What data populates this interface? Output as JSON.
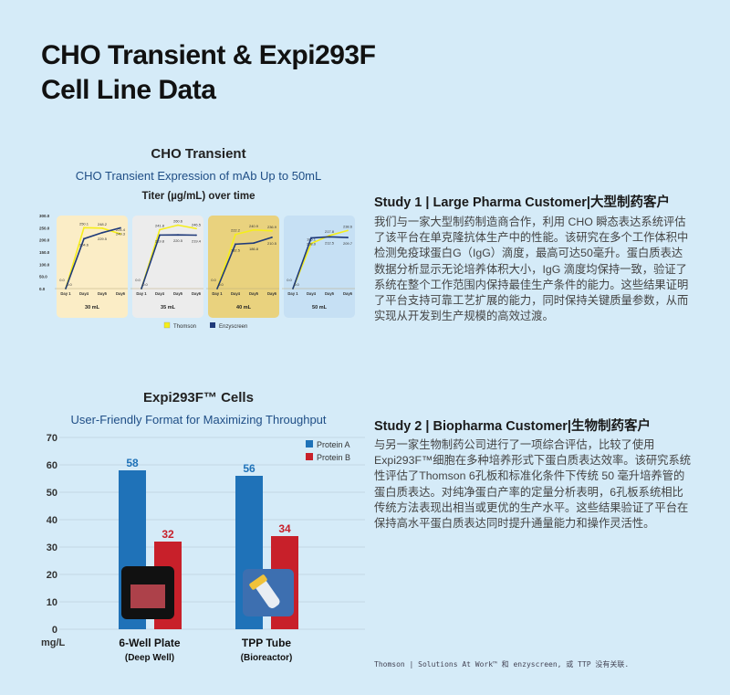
{
  "page_title": [
    "CHO Transient & Expi293F",
    "Cell Line Data"
  ],
  "cho": {
    "heading": "CHO Transient",
    "subtitle": "CHO Transient Expression of mAb Up to 50mL",
    "chart_title": "Titer (µg/mL) over time"
  },
  "expi": {
    "heading": "Expi293F™ Cells",
    "subtitle": "User-Friendly Format for Maximizing Throughput"
  },
  "study1": {
    "heading": "Study 1 | Large Pharma Customer|大型制药客户",
    "body": "我们与一家大型制药制造商合作，利用 CHO 瞬态表达系统评估了该平台在单克隆抗体生产中的性能。该研究在多个工作体积中检测免疫球蛋白G（IgG）滴度，最高可达50毫升。蛋白质表达数据分析显示无论培养体积大小，IgG 滴度均保持一致，验证了系统在整个工作范围内保持最佳生产条件的能力。这些结果证明了平台支持可靠工艺扩展的能力，同时保持关键质量参数，从而实现从开发到生产规模的高效过渡。"
  },
  "study2": {
    "heading": "Study 2 | Biopharma Customer|生物制药客户",
    "body": "与另一家生物制药公司进行了一项综合评估，比较了使用Expi293F™细胞在多种培养形式下蛋白质表达效率。该研究系统性评估了Thomson 6孔板和标准化条件下传统 50 毫升培养管的蛋白质表达。对纯净蛋白产率的定量分析表明，6孔板系统相比传统方法表现出相当或更优的生产水平。这些结果验证了平台在保持高水平蛋白质表达同时提升通量能力和操作灵活性。"
  },
  "footnote": "Thomson | Solutions At Work™ 和 enzyscreen, 或 TTP 没有关联.",
  "colors": {
    "thomson": "#f5ee1a",
    "enzyscreen": "#1f3a7a",
    "proteinA": "#1f72b8",
    "proteinB": "#c8202a"
  },
  "chart_data": [
    {
      "type": "line",
      "title": "Titer (µg/mL) over time",
      "categories": [
        "Day 1",
        "Day4",
        "Day5",
        "Day6"
      ],
      "ylim": [
        0,
        300
      ],
      "yticks": [
        "0.0",
        "50.0",
        "100.0",
        "150.0",
        "200.0",
        "250.0",
        "300.0"
      ],
      "legend": [
        "Thomson",
        "Enzyscreen"
      ],
      "panels": [
        {
          "label": "30 mL",
          "bg": "#fbedc6",
          "thomson": [
            0.0,
            250.1,
            248.2,
            224.4
          ],
          "enzyscreen": [
            0.0,
            204.6,
            229.5,
            249.3
          ]
        },
        {
          "label": "35 mL",
          "bg": "#ececec",
          "thomson": [
            0.0,
            241.8,
            260.6,
            246.5
          ],
          "enzyscreen": [
            0.0,
            219.8,
            220.5,
            219.4
          ]
        },
        {
          "label": "40 mL",
          "bg": "#e9d27e",
          "thomson": [
            0.0,
            222.2,
            240.9,
            236.9
          ],
          "enzyscreen": [
            0.0,
            182.5,
            186.8,
            210.5
          ]
        },
        {
          "label": "50 mL",
          "bg": "#c6e0f4",
          "thomson": [
            0.0,
            185.1,
            217.8,
            238.6
          ],
          "enzyscreen": [
            0.0,
            208.0,
            212.5,
            209.7
          ]
        }
      ]
    },
    {
      "type": "bar",
      "categories": [
        [
          "6-Well Plate",
          "(Deep Well)"
        ],
        [
          "TPP Tube",
          "(Bioreactor)"
        ]
      ],
      "series": [
        {
          "name": "Protein A",
          "values": [
            58,
            56
          ]
        },
        {
          "name": "Protein B",
          "values": [
            32,
            34
          ]
        }
      ],
      "ylim": [
        0,
        70
      ],
      "yticks": [
        "0",
        "10",
        "20",
        "30",
        "40",
        "50",
        "60",
        "70"
      ],
      "ylabel": "mg/L",
      "legend": "top-right"
    }
  ]
}
